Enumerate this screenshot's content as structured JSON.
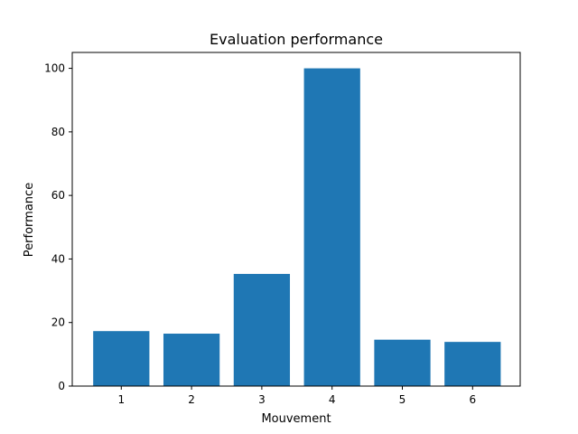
{
  "chart_data": {
    "type": "bar",
    "title": "Evaluation performance",
    "xlabel": "Mouvement",
    "ylabel": "Performance",
    "categories": [
      "1",
      "2",
      "3",
      "4",
      "5",
      "6"
    ],
    "values": [
      17.3,
      16.5,
      35.3,
      100.0,
      14.6,
      13.9
    ],
    "ylim": [
      0,
      105
    ],
    "yticks": [
      0,
      20,
      40,
      60,
      80,
      100
    ],
    "bar_color": "#1f77b4",
    "grid": false,
    "legend": "none"
  }
}
